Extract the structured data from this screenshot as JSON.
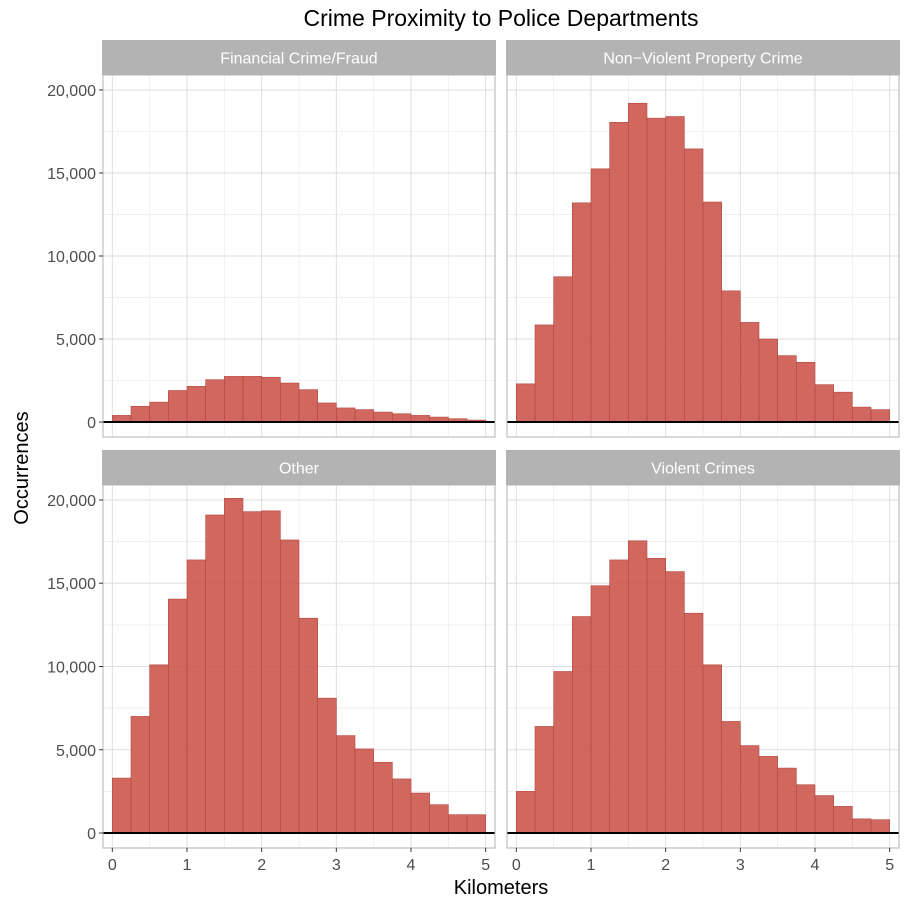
{
  "chart_data": {
    "type": "bar",
    "title": "Crime Proximity to Police Departments",
    "xlabel": "Kilometers",
    "ylabel": "Occurrences",
    "xlim": [
      -0.125,
      5.125
    ],
    "ylim": [
      -900,
      20900
    ],
    "x_ticks": [
      0,
      1,
      2,
      3,
      4,
      5
    ],
    "x_tick_labels": [
      "0",
      "1",
      "2",
      "3",
      "4",
      "5"
    ],
    "y_ticks": [
      0,
      5000,
      10000,
      15000,
      20000
    ],
    "y_tick_labels": [
      "0",
      "5,000",
      "10,000",
      "15,000",
      "20,000"
    ],
    "grid": true,
    "bin_width": 0.25,
    "bin_starts": [
      0,
      0.25,
      0.5,
      0.75,
      1,
      1.25,
      1.5,
      1.75,
      2,
      2.25,
      2.5,
      2.75,
      3,
      3.25,
      3.5,
      3.75,
      4,
      4.25,
      4.5,
      4.75
    ],
    "bar_color": "#c9534a",
    "panels": [
      {
        "name": "Financial Crime/Fraud",
        "values": [
          400,
          950,
          1200,
          1900,
          2150,
          2550,
          2750,
          2750,
          2700,
          2350,
          1950,
          1150,
          850,
          750,
          600,
          500,
          400,
          300,
          200,
          120
        ]
      },
      {
        "name": "Non−Violent Property Crime",
        "values": [
          2300,
          5850,
          8750,
          13200,
          15250,
          18050,
          19200,
          18300,
          18400,
          16450,
          13250,
          7900,
          6000,
          5000,
          4000,
          3600,
          2250,
          1800,
          900,
          750
        ]
      },
      {
        "name": "Other",
        "values": [
          3300,
          7000,
          10100,
          14050,
          16400,
          19100,
          20100,
          19300,
          19350,
          17600,
          12900,
          8100,
          5850,
          5050,
          4250,
          3250,
          2400,
          1700,
          1100,
          1100
        ]
      },
      {
        "name": "Violent Crimes",
        "values": [
          2500,
          6400,
          9700,
          13000,
          14850,
          16400,
          17550,
          16500,
          15700,
          13200,
          10100,
          6700,
          5250,
          4600,
          3900,
          2900,
          2250,
          1600,
          850,
          800
        ]
      }
    ]
  }
}
